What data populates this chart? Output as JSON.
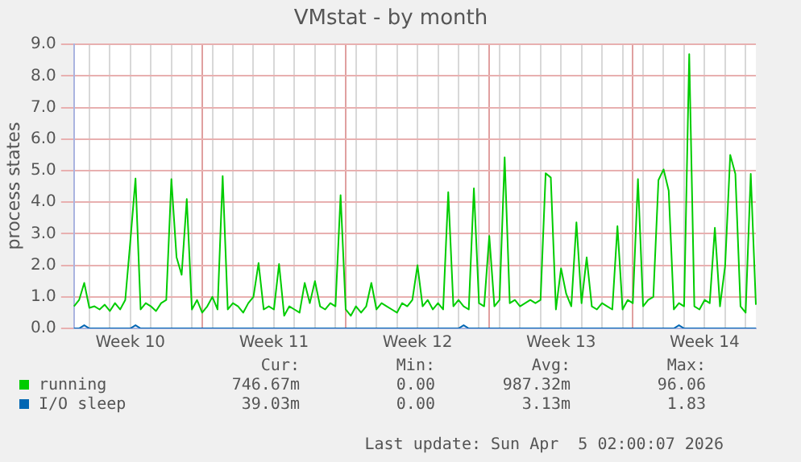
{
  "chart_data": {
    "type": "line",
    "title": "VMstat - by month",
    "ylabel": "process states",
    "categories": [
      null,
      null,
      null,
      null,
      null,
      null,
      null,
      null,
      null,
      null,
      null,
      "Week 10",
      null,
      null,
      null,
      null,
      null,
      null,
      null,
      null,
      null,
      null,
      null,
      null,
      null,
      null,
      null,
      null,
      null,
      null,
      null,
      null,
      null,
      null,
      null,
      null,
      null,
      null,
      null,
      "Week 11",
      null,
      null,
      null,
      null,
      null,
      null,
      null,
      null,
      null,
      null,
      null,
      null,
      null,
      null,
      null,
      null,
      null,
      null,
      null,
      null,
      null,
      null,
      null,
      null,
      null,
      null,
      null,
      "Week 12",
      null,
      null,
      null,
      null,
      null,
      null,
      null,
      null,
      null,
      null,
      null,
      null,
      null,
      null,
      null,
      null,
      null,
      null,
      null,
      null,
      null,
      null,
      null,
      null,
      null,
      null,
      null,
      "Week 13",
      null,
      null,
      null,
      null,
      null,
      null,
      null,
      null,
      null,
      null,
      null,
      null,
      null,
      null,
      null,
      null,
      null,
      null,
      null,
      null,
      null,
      null,
      null,
      null,
      null,
      null,
      null,
      "Week 14",
      null,
      null,
      null,
      null,
      null,
      null,
      null,
      null,
      null,
      null
    ],
    "ylim": [
      0,
      9
    ],
    "yticks": [
      {
        "value": 0,
        "label": "0.0"
      },
      {
        "value": 1,
        "label": "1.0"
      },
      {
        "value": 2,
        "label": "2.0"
      },
      {
        "value": 3,
        "label": "3.0"
      },
      {
        "value": 4,
        "label": "4.0"
      },
      {
        "value": 5,
        "label": "5.0"
      },
      {
        "value": 6,
        "label": "6.0"
      },
      {
        "value": 7,
        "label": "7.0"
      },
      {
        "value": 8,
        "label": "8.0"
      },
      {
        "value": 9,
        "label": "9.0"
      }
    ],
    "grid": true,
    "legend": "bottom",
    "marker": "none",
    "line_style": "solid",
    "series": [
      {
        "name": "running",
        "color": "#00cc00",
        "values": [
          0.7,
          0.9,
          1.44,
          0.65,
          0.7,
          0.6,
          0.75,
          0.55,
          0.8,
          0.6,
          0.9,
          2.78,
          4.75,
          0.6,
          0.8,
          0.7,
          0.55,
          0.8,
          0.9,
          4.73,
          2.26,
          1.7,
          4.1,
          0.6,
          0.9,
          0.5,
          0.7,
          1.0,
          0.6,
          4.83,
          0.6,
          0.8,
          0.7,
          0.5,
          0.8,
          1.0,
          2.07,
          0.6,
          0.7,
          0.6,
          2.04,
          0.4,
          0.7,
          0.6,
          0.5,
          1.44,
          0.8,
          1.5,
          0.7,
          0.6,
          0.8,
          0.7,
          4.22,
          0.6,
          0.4,
          0.7,
          0.5,
          0.7,
          1.44,
          0.6,
          0.8,
          0.7,
          0.6,
          0.5,
          0.8,
          0.7,
          0.9,
          2.0,
          0.7,
          0.9,
          0.6,
          0.8,
          0.6,
          4.32,
          0.7,
          0.9,
          0.7,
          0.6,
          4.44,
          0.8,
          0.7,
          2.93,
          0.7,
          0.9,
          5.42,
          0.8,
          0.9,
          0.7,
          0.8,
          0.9,
          0.8,
          0.9,
          4.92,
          4.78,
          0.6,
          1.9,
          1.1,
          0.7,
          3.36,
          0.8,
          2.25,
          0.7,
          0.6,
          0.8,
          0.7,
          0.6,
          3.24,
          0.6,
          0.9,
          0.8,
          4.73,
          0.7,
          0.9,
          1.0,
          4.7,
          5.04,
          4.36,
          0.6,
          0.8,
          0.7,
          8.69,
          0.7,
          0.6,
          0.9,
          0.8,
          3.19,
          0.7,
          1.98,
          5.5,
          4.9,
          0.7,
          0.5,
          4.9,
          0.75
        ]
      },
      {
        "name": "I/O sleep",
        "color": "#0066b3",
        "values": [
          0,
          0,
          0.1,
          0,
          0,
          0,
          0,
          0,
          0,
          0,
          0,
          0,
          0.1,
          0,
          0,
          0,
          0,
          0,
          0,
          0,
          0,
          0,
          0,
          0,
          0,
          0,
          0,
          0,
          0,
          0,
          0,
          0,
          0,
          0,
          0,
          0,
          0,
          0,
          0,
          0,
          0,
          0,
          0,
          0,
          0,
          0,
          0,
          0,
          0,
          0,
          0,
          0,
          0,
          0,
          0,
          0,
          0,
          0,
          0,
          0,
          0,
          0,
          0,
          0,
          0,
          0,
          0,
          0,
          0,
          0,
          0,
          0,
          0,
          0,
          0,
          0,
          0.1,
          0,
          0,
          0,
          0,
          0,
          0,
          0,
          0,
          0,
          0,
          0,
          0,
          0,
          0,
          0,
          0,
          0,
          0,
          0,
          0,
          0,
          0,
          0,
          0,
          0,
          0,
          0,
          0,
          0,
          0,
          0,
          0,
          0,
          0,
          0,
          0,
          0,
          0,
          0,
          0,
          0,
          0.1,
          0,
          0,
          0,
          0,
          0,
          0,
          0,
          0,
          0,
          0,
          0,
          0,
          0,
          0,
          0
        ]
      }
    ],
    "annotations": [
      "Cur:",
      "Min:",
      "Avg:",
      "Max:",
      "746.67m",
      "0.00",
      "987.32m",
      "96.06",
      "39.03m",
      "0.00",
      "3.13m",
      "1.83",
      "Last update: Sun Apr  5 02:00:07 2026"
    ]
  }
}
